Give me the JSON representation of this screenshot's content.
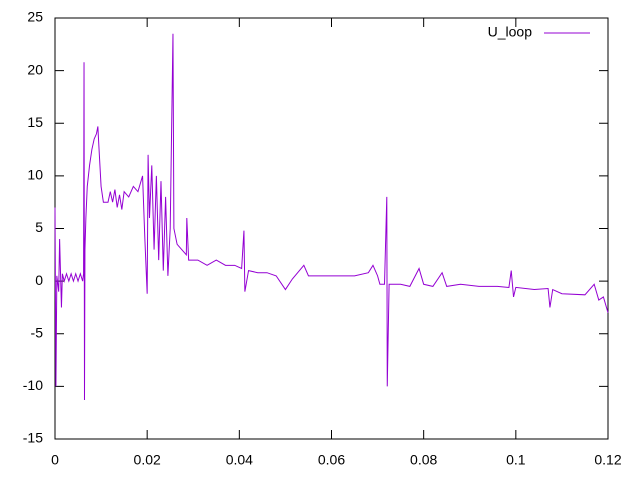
{
  "chart_data": {
    "type": "line",
    "x": [
      0,
      0.0002,
      0.0004,
      0.0008,
      0.001,
      0.0012,
      0.0014,
      0.0016,
      0.002,
      0.0025,
      0.003,
      0.0035,
      0.004,
      0.0045,
      0.005,
      0.0055,
      0.006,
      0.0062,
      0.0063,
      0.0064,
      0.0065,
      0.0067,
      0.007,
      0.0075,
      0.008,
      0.0085,
      0.009,
      0.0093,
      0.0095,
      0.01,
      0.0105,
      0.0115,
      0.012,
      0.0125,
      0.013,
      0.0135,
      0.014,
      0.0145,
      0.015,
      0.016,
      0.017,
      0.018,
      0.019,
      0.0195,
      0.02,
      0.0202,
      0.0205,
      0.021,
      0.0215,
      0.022,
      0.0225,
      0.023,
      0.0235,
      0.024,
      0.0245,
      0.025,
      0.0256,
      0.0258,
      0.0265,
      0.0275,
      0.0285,
      0.0286,
      0.029,
      0.031,
      0.033,
      0.035,
      0.037,
      0.039,
      0.0405,
      0.041,
      0.0412,
      0.042,
      0.044,
      0.046,
      0.048,
      0.05,
      0.0515,
      0.054,
      0.055,
      0.06,
      0.065,
      0.068,
      0.069,
      0.07,
      0.0705,
      0.0715,
      0.072,
      0.0721,
      0.0725,
      0.075,
      0.077,
      0.079,
      0.08,
      0.082,
      0.084,
      0.085,
      0.088,
      0.092,
      0.096,
      0.0985,
      0.099,
      0.0995,
      0.1,
      0.104,
      0.107,
      0.1074,
      0.108,
      0.11,
      0.115,
      0.117,
      0.118,
      0.119,
      0.12
    ],
    "series": [
      {
        "name": "U_loop",
        "color": "#9400d3",
        "values": [
          7,
          -10,
          0.5,
          -1,
          4,
          0.7,
          -2.5,
          0.7,
          0,
          0.7,
          0,
          0.7,
          0,
          0.7,
          0,
          0.7,
          0,
          0.7,
          20.8,
          -11.3,
          3,
          6,
          9,
          11,
          12.5,
          13.5,
          14,
          14.7,
          13,
          9,
          7.5,
          7.5,
          8.5,
          7.5,
          8.7,
          7,
          8.2,
          6.8,
          8.5,
          8,
          9,
          8.5,
          10,
          4,
          -1.2,
          12,
          6,
          11,
          3,
          10,
          2,
          9.5,
          1,
          8,
          0.5,
          5,
          23.5,
          5,
          3.5,
          3,
          2.5,
          6,
          2,
          2,
          1.5,
          2,
          1.5,
          1.5,
          1.2,
          4.8,
          -1,
          1,
          0.8,
          0.8,
          0.5,
          -0.8,
          0.2,
          1.5,
          0.5,
          0.5,
          0.5,
          0.8,
          1.5,
          0.5,
          -0.3,
          -0.3,
          8,
          -10,
          -0.3,
          -0.3,
          -0.5,
          1.2,
          -0.3,
          -0.5,
          0.8,
          -0.5,
          -0.3,
          -0.5,
          -0.5,
          -0.6,
          1,
          -1.5,
          -0.6,
          -0.8,
          -0.7,
          -2.5,
          -0.8,
          -1.2,
          -1.3,
          -0.3,
          -1.8,
          -1.5,
          -3
        ]
      }
    ],
    "xlim": [
      0,
      0.12
    ],
    "xticks": [
      0,
      0.02,
      0.04,
      0.06,
      0.08,
      0.1,
      0.12
    ],
    "ylim": [
      -15,
      25
    ],
    "yticks": [
      -15,
      -10,
      -5,
      0,
      5,
      10,
      15,
      20,
      25
    ],
    "legend": "top right"
  }
}
